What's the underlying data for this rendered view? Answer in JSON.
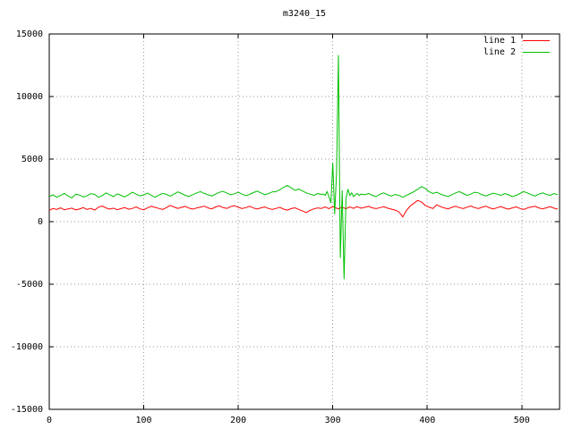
{
  "chart_data": {
    "type": "line",
    "title": "m3240_15",
    "xlabel": "",
    "ylabel": "",
    "xlim": [
      0,
      540
    ],
    "ylim": [
      -15000,
      15000
    ],
    "xticks": [
      0,
      100,
      200,
      300,
      400,
      500
    ],
    "yticks": [
      -15000,
      -10000,
      -5000,
      0,
      5000,
      10000,
      15000
    ],
    "grid": "dotted",
    "legend_position": "top-right-inside",
    "x": [
      0,
      4,
      8,
      12,
      16,
      20,
      24,
      28,
      32,
      36,
      40,
      44,
      48,
      52,
      56,
      60,
      64,
      68,
      72,
      76,
      80,
      84,
      88,
      92,
      96,
      100,
      104,
      108,
      112,
      116,
      120,
      124,
      128,
      132,
      136,
      140,
      144,
      148,
      152,
      156,
      160,
      164,
      168,
      172,
      176,
      180,
      184,
      188,
      192,
      196,
      200,
      204,
      208,
      212,
      216,
      220,
      224,
      228,
      232,
      236,
      240,
      244,
      248,
      252,
      256,
      260,
      264,
      268,
      272,
      276,
      280,
      284,
      288,
      290,
      292,
      294,
      296,
      298,
      300,
      302,
      304,
      306,
      308,
      310,
      312,
      314,
      316,
      318,
      320,
      322,
      324,
      326,
      328,
      330,
      334,
      338,
      342,
      346,
      350,
      354,
      358,
      362,
      366,
      370,
      374,
      378,
      382,
      386,
      390,
      394,
      398,
      402,
      406,
      410,
      414,
      418,
      422,
      426,
      430,
      434,
      438,
      442,
      446,
      450,
      454,
      458,
      462,
      466,
      470,
      474,
      478,
      482,
      486,
      490,
      494,
      498,
      502,
      506,
      510,
      514,
      518,
      522,
      526,
      530,
      534,
      538
    ],
    "series": [
      {
        "name": "line 1",
        "color": "#ff0000",
        "values": [
          900,
          1050,
          980,
          1100,
          950,
          1020,
          1080,
          940,
          1010,
          1120,
          980,
          1060,
          930,
          1150,
          1250,
          1100,
          1000,
          1080,
          960,
          1040,
          1120,
          990,
          1060,
          1180,
          1020,
          950,
          1100,
          1230,
          1140,
          1060,
          980,
          1120,
          1300,
          1180,
          1060,
          1140,
          1220,
          1080,
          1000,
          1090,
          1160,
          1240,
          1100,
          1020,
          1180,
          1260,
          1120,
          1060,
          1200,
          1280,
          1150,
          1040,
          1120,
          1230,
          1090,
          1010,
          1100,
          1180,
          1050,
          970,
          1060,
          1140,
          1000,
          920,
          1040,
          1110,
          980,
          850,
          720,
          900,
          1020,
          1100,
          1060,
          1120,
          1180,
          1100,
          1040,
          1120,
          1200,
          1150,
          1080,
          1020,
          1100,
          1160,
          1090,
          1030,
          1110,
          1180,
          1120,
          1060,
          1140,
          1200,
          1130,
          1070,
          1150,
          1220,
          1100,
          1040,
          1120,
          1190,
          1080,
          1000,
          920,
          780,
          380,
          900,
          1250,
          1480,
          1700,
          1560,
          1300,
          1150,
          1050,
          1350,
          1200,
          1100,
          1020,
          1140,
          1230,
          1120,
          1040,
          1160,
          1250,
          1130,
          1050,
          1150,
          1240,
          1100,
          1010,
          1120,
          1200,
          1080,
          1000,
          1100,
          1180,
          1060,
          980,
          1090,
          1170,
          1230,
          1100,
          1020,
          1110,
          1190,
          1080,
          1000
        ]
      },
      {
        "name": "line 2",
        "color": "#00c000",
        "values": [
          2000,
          2150,
          1950,
          2100,
          2250,
          2050,
          1900,
          2200,
          2120,
          1980,
          2060,
          2240,
          2180,
          1950,
          2080,
          2300,
          2150,
          2000,
          2220,
          2100,
          1980,
          2160,
          2350,
          2200,
          2060,
          2140,
          2280,
          2100,
          1950,
          2120,
          2260,
          2180,
          2040,
          2200,
          2380,
          2250,
          2100,
          2020,
          2160,
          2300,
          2400,
          2260,
          2150,
          2050,
          2200,
          2340,
          2420,
          2280,
          2150,
          2230,
          2360,
          2200,
          2080,
          2180,
          2320,
          2440,
          2300,
          2160,
          2240,
          2380,
          2400,
          2550,
          2750,
          2900,
          2700,
          2500,
          2600,
          2450,
          2300,
          2200,
          2100,
          2250,
          2180,
          2200,
          2100,
          2400,
          2000,
          1500,
          4700,
          600,
          3900,
          13300,
          -2900,
          2500,
          -4600,
          1800,
          2600,
          2100,
          2300,
          2000,
          2150,
          2250,
          2100,
          2200,
          2150,
          2250,
          2100,
          2000,
          2200,
          2300,
          2150,
          2050,
          2180,
          2100,
          1950,
          2100,
          2250,
          2400,
          2600,
          2800,
          2650,
          2400,
          2250,
          2350,
          2200,
          2100,
          2000,
          2150,
          2300,
          2400,
          2250,
          2100,
          2200,
          2350,
          2300,
          2150,
          2050,
          2180,
          2280,
          2200,
          2100,
          2250,
          2150,
          2000,
          2100,
          2250,
          2400,
          2300,
          2150,
          2050,
          2200,
          2300,
          2180,
          2100,
          2250,
          2150
        ]
      }
    ]
  }
}
